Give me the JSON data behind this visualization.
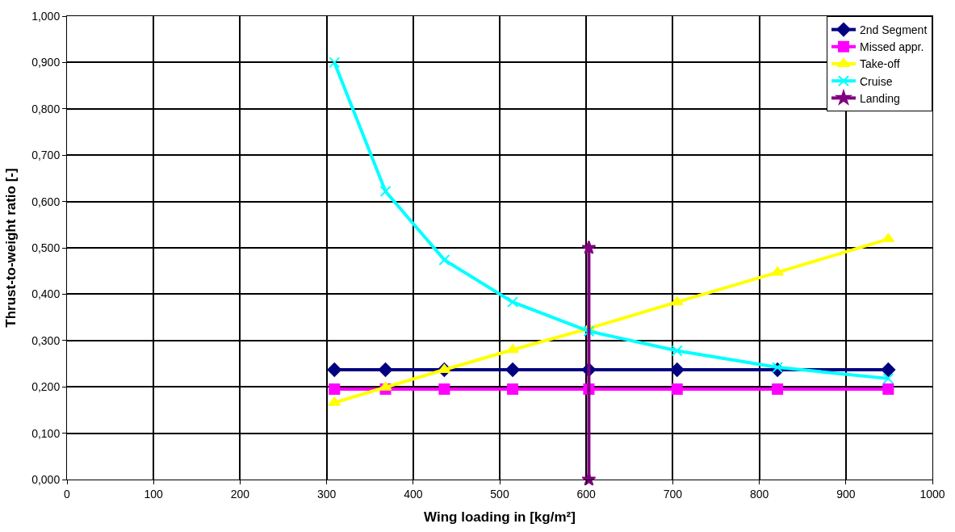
{
  "chart_data": {
    "type": "line",
    "xlabel": "Wing loading in [kg/m²]",
    "ylabel": "Thrust-to-weight ratio [-]",
    "xlim": [
      0,
      1000
    ],
    "xticks": [
      0,
      100,
      200,
      300,
      400,
      500,
      600,
      700,
      800,
      900,
      1000
    ],
    "ylim": [
      0,
      1
    ],
    "yticks": [
      {
        "value": 0,
        "label": "0,000"
      },
      {
        "value": 0.1,
        "label": "0,100"
      },
      {
        "value": 0.2,
        "label": "0,200"
      },
      {
        "value": 0.3,
        "label": "0,300"
      },
      {
        "value": 0.4,
        "label": "0,400"
      },
      {
        "value": 0.5,
        "label": "0,500"
      },
      {
        "value": 0.6,
        "label": "0,600"
      },
      {
        "value": 0.7,
        "label": "0,700"
      },
      {
        "value": 0.8,
        "label": "0,800"
      },
      {
        "value": 0.9,
        "label": "0,900"
      },
      {
        "value": 1,
        "label": "1,000"
      }
    ],
    "grid": true,
    "legend": "top right",
    "line_style": "solid",
    "series": [
      {
        "name": "2nd Segment",
        "color": "#000080",
        "marker": "diamond",
        "x": [
          309,
          368,
          436,
          515,
          603,
          705,
          821,
          949
        ],
        "values": [
          0.237,
          0.237,
          0.237,
          0.237,
          0.237,
          0.237,
          0.237,
          0.237
        ]
      },
      {
        "name": "Missed appr.",
        "color": "#ff00ff",
        "marker": "square",
        "x": [
          309,
          368,
          436,
          515,
          603,
          705,
          821,
          949
        ],
        "values": [
          0.195,
          0.195,
          0.195,
          0.195,
          0.195,
          0.195,
          0.195,
          0.195
        ]
      },
      {
        "name": "Take-off",
        "color": "#ffff00",
        "marker": "triangle",
        "x": [
          309,
          368,
          436,
          515,
          603,
          705,
          821,
          949
        ],
        "values": [
          0.166,
          0.199,
          0.237,
          0.28,
          0.326,
          0.383,
          0.447,
          0.519
        ]
      },
      {
        "name": "Cruise",
        "color": "#00ffff",
        "marker": "cross",
        "x": [
          309,
          368,
          436,
          515,
          603,
          705,
          821,
          949
        ],
        "values": [
          0.9,
          0.622,
          0.474,
          0.383,
          0.32,
          0.278,
          0.242,
          0.218
        ]
      },
      {
        "name": "Landing",
        "color": "#800080",
        "marker": "star",
        "x": [
          603,
          603
        ],
        "values": [
          0,
          0.5
        ]
      }
    ]
  }
}
